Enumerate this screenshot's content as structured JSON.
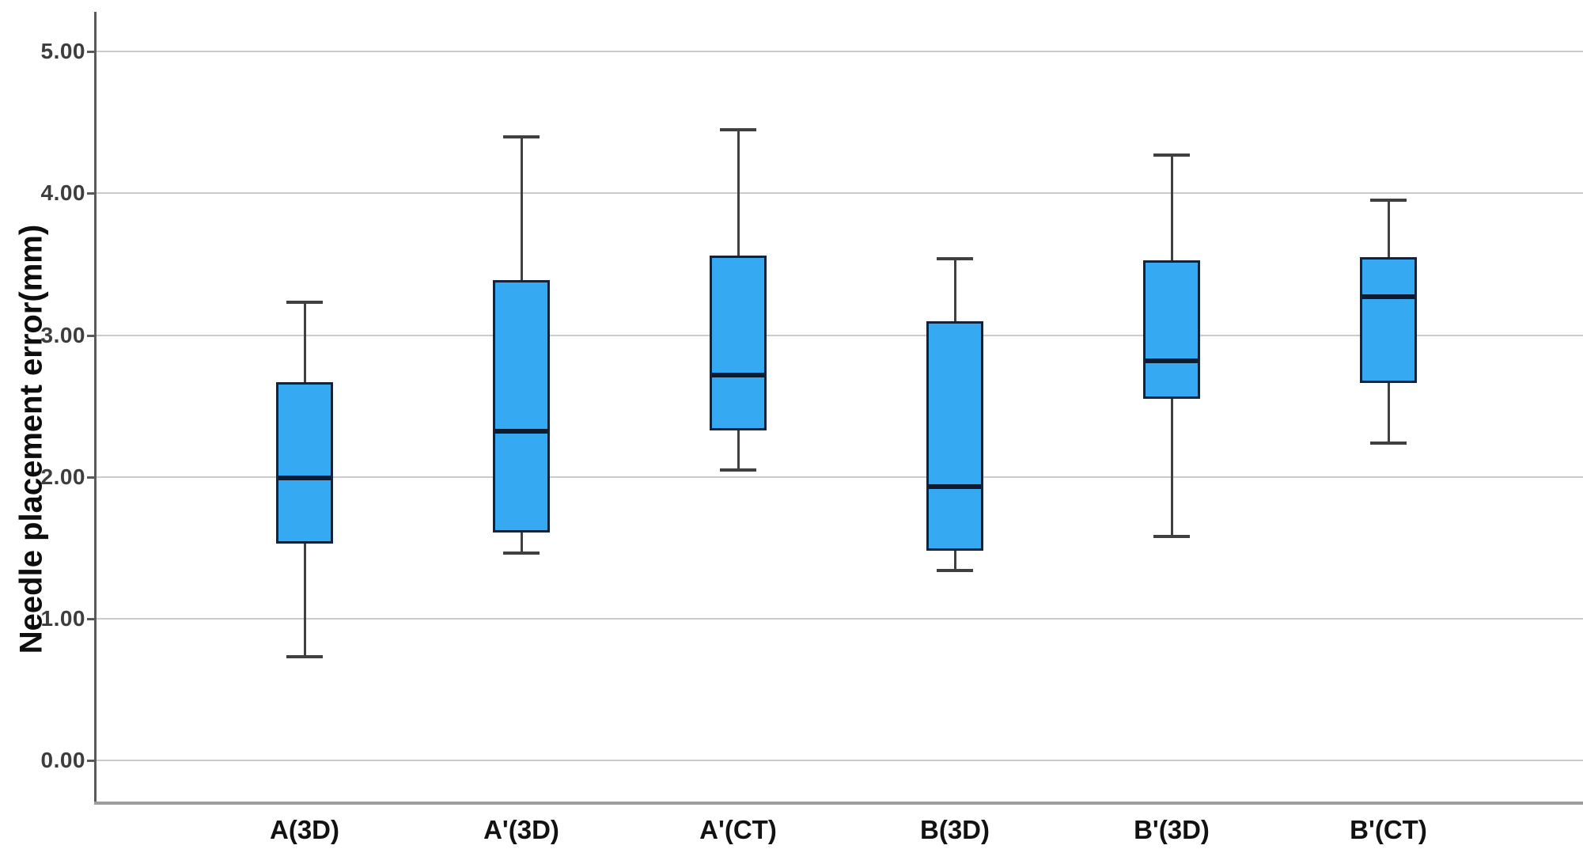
{
  "chart_data": {
    "type": "boxplot",
    "title": "",
    "xlabel": "",
    "ylabel": "Needle placement error(mm)",
    "categories": [
      "A(3D)",
      "A'(3D)",
      "A'(CT)",
      "B(3D)",
      "B'(3D)",
      "B'(CT)"
    ],
    "series": [
      {
        "name": "A(3D)",
        "whisker_low": 0.73,
        "q1": 1.53,
        "median": 1.99,
        "q3": 2.67,
        "whisker_high": 3.23
      },
      {
        "name": "A'(3D)",
        "whisker_low": 1.46,
        "q1": 1.61,
        "median": 2.32,
        "q3": 3.39,
        "whisker_high": 4.4
      },
      {
        "name": "A'(CT)",
        "whisker_low": 2.05,
        "q1": 2.33,
        "median": 2.72,
        "q3": 3.56,
        "whisker_high": 4.45
      },
      {
        "name": "B(3D)",
        "whisker_low": 1.34,
        "q1": 1.48,
        "median": 1.93,
        "q3": 3.1,
        "whisker_high": 3.54
      },
      {
        "name": "B'(3D)",
        "whisker_low": 1.58,
        "q1": 2.55,
        "median": 2.82,
        "q3": 3.53,
        "whisker_high": 4.27
      },
      {
        "name": "B'(CT)",
        "whisker_low": 2.24,
        "q1": 2.66,
        "median": 3.27,
        "q3": 3.55,
        "whisker_high": 3.95
      }
    ],
    "y_ticks": [
      {
        "value": 0,
        "label": "0.00"
      },
      {
        "value": 1,
        "label": "1.00"
      },
      {
        "value": 2,
        "label": "2.00"
      },
      {
        "value": 3,
        "label": "3.00"
      },
      {
        "value": 4,
        "label": "4.00"
      },
      {
        "value": 5,
        "label": "5.00"
      }
    ],
    "ylim": [
      -0.29,
      5.28
    ],
    "grid": true,
    "legend": false,
    "colors": {
      "box_fill": "#35A9F1",
      "box_border": "#13233B",
      "median": "#0C1B2E",
      "whisker": "#3F4040",
      "gridline": "#CBCBCB",
      "axis": "#57595B",
      "bottom_border": "#9D9D9D",
      "tick_label": "#3D3D3D",
      "category_label": "#121212",
      "axis_title": "#0E0E0E"
    }
  }
}
